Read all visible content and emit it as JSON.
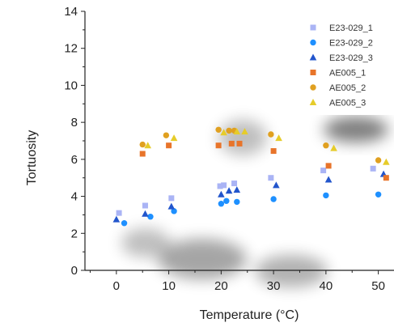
{
  "chart_data": {
    "type": "scatter",
    "title": "",
    "xlabel": "Temperature (°C)",
    "ylabel": "Tortuosity",
    "xlim": [
      -6,
      55
    ],
    "ylim": [
      0,
      14
    ],
    "xticks": [
      0,
      10,
      20,
      30,
      40,
      50
    ],
    "yticks": [
      0,
      2,
      4,
      6,
      8,
      10,
      12,
      14
    ],
    "grid": false,
    "legend_position": "top-right",
    "series": [
      {
        "name": "E23-029_1",
        "marker": "square",
        "color": "#aab4f5",
        "points": [
          [
            0.5,
            3.1
          ],
          [
            5.5,
            3.5
          ],
          [
            10.5,
            3.9
          ],
          [
            19.8,
            4.55
          ],
          [
            20.5,
            4.6
          ],
          [
            22.5,
            4.7
          ],
          [
            29.5,
            5.0
          ],
          [
            39.5,
            5.4
          ],
          [
            49.0,
            5.5
          ]
        ]
      },
      {
        "name": "E23-029_2",
        "marker": "circle",
        "color": "#1e90ff",
        "points": [
          [
            1.5,
            2.55
          ],
          [
            6.5,
            2.9
          ],
          [
            11.0,
            3.2
          ],
          [
            20.0,
            3.6
          ],
          [
            21.0,
            3.75
          ],
          [
            23.0,
            3.7
          ],
          [
            30.0,
            3.85
          ],
          [
            40.0,
            4.05
          ],
          [
            50.0,
            4.1
          ]
        ]
      },
      {
        "name": "E23-029_3",
        "marker": "triangle",
        "color": "#2255cc",
        "points": [
          [
            0.0,
            2.75
          ],
          [
            5.5,
            3.05
          ],
          [
            10.5,
            3.45
          ],
          [
            20.0,
            4.1
          ],
          [
            21.5,
            4.3
          ],
          [
            23.0,
            4.35
          ],
          [
            30.5,
            4.6
          ],
          [
            40.5,
            4.9
          ],
          [
            51.0,
            5.2
          ]
        ]
      },
      {
        "name": "AE005_1",
        "marker": "square",
        "color": "#e8742a",
        "points": [
          [
            5.0,
            6.3
          ],
          [
            10.0,
            6.75
          ],
          [
            19.5,
            6.75
          ],
          [
            22.0,
            6.85
          ],
          [
            23.5,
            6.85
          ],
          [
            30.0,
            6.45
          ],
          [
            40.5,
            5.65
          ],
          [
            51.5,
            5.0
          ]
        ]
      },
      {
        "name": "AE005_2",
        "marker": "circle",
        "color": "#e0a020",
        "points": [
          [
            5.0,
            6.8
          ],
          [
            9.5,
            7.3
          ],
          [
            19.5,
            7.6
          ],
          [
            21.5,
            7.55
          ],
          [
            22.5,
            7.55
          ],
          [
            29.5,
            7.35
          ],
          [
            40.0,
            6.75
          ],
          [
            50.0,
            5.95
          ]
        ]
      },
      {
        "name": "AE005_3",
        "marker": "triangle",
        "color": "#e6cc2a",
        "points": [
          [
            6.0,
            6.75
          ],
          [
            11.0,
            7.15
          ],
          [
            20.5,
            7.45
          ],
          [
            23.0,
            7.5
          ],
          [
            24.5,
            7.5
          ],
          [
            31.0,
            7.15
          ],
          [
            41.5,
            6.6
          ],
          [
            51.5,
            5.85
          ]
        ]
      }
    ]
  }
}
